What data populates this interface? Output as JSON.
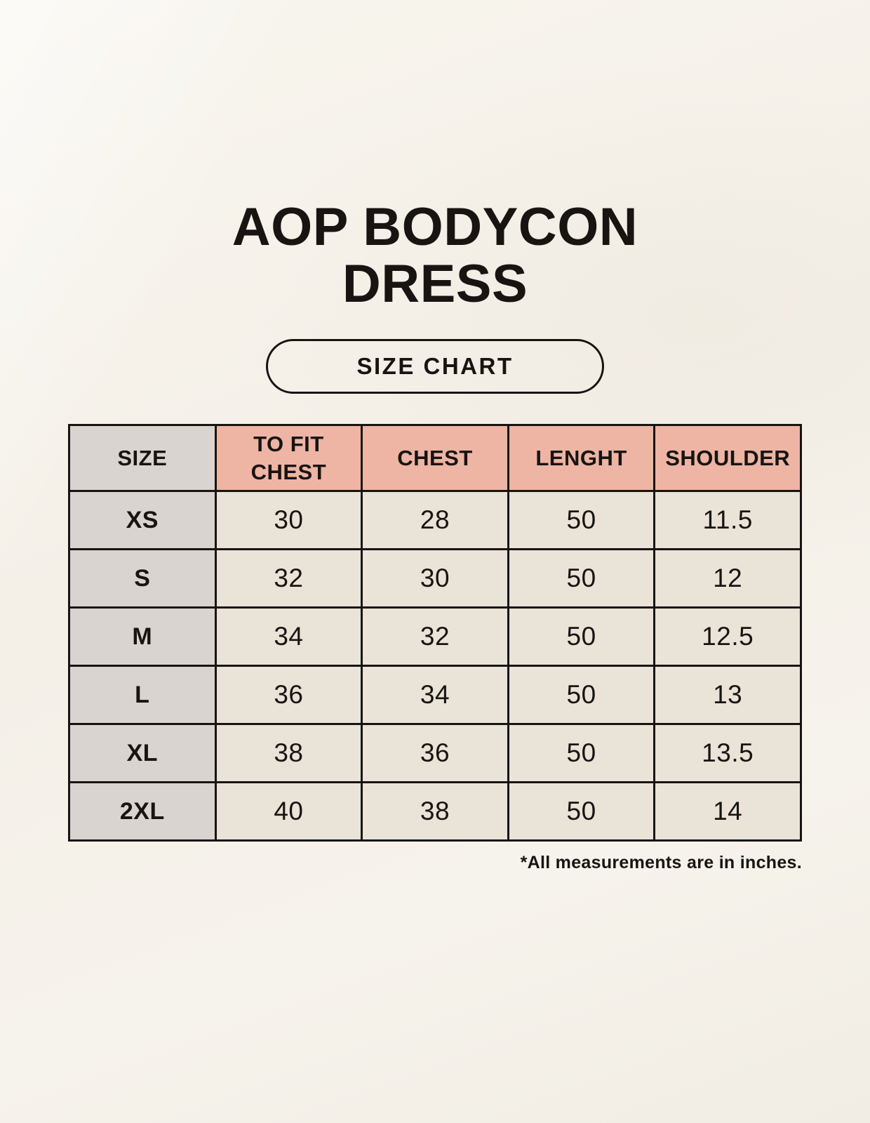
{
  "title": "AOP BODYCON DRESS",
  "size_chart_button_label": "SIZE CHART",
  "footnote": "*All measurements are in inches.",
  "units": "inches",
  "colors": {
    "background": "#f5f2ea",
    "header_accent": "#eeb4a4",
    "size_column": "#d9d4d0",
    "cell_background": "#e9e3d8",
    "border": "#171411",
    "text": "#171411"
  },
  "chart_data": {
    "type": "table",
    "title": "AOP BODYCON DRESS",
    "subtitle": "SIZE CHART",
    "columns": [
      "SIZE",
      "TO FIT CHEST",
      "CHEST",
      "LENGHT",
      "SHOULDER"
    ],
    "rows": [
      [
        "XS",
        "30",
        "28",
        "50",
        "11.5"
      ],
      [
        "S",
        "32",
        "30",
        "50",
        "12"
      ],
      [
        "M",
        "34",
        "32",
        "50",
        "12.5"
      ],
      [
        "L",
        "36",
        "34",
        "50",
        "13"
      ],
      [
        "XL",
        "38",
        "36",
        "50",
        "13.5"
      ],
      [
        "2XL",
        "40",
        "38",
        "50",
        "14"
      ]
    ],
    "footnote": "*All measurements are in inches."
  }
}
